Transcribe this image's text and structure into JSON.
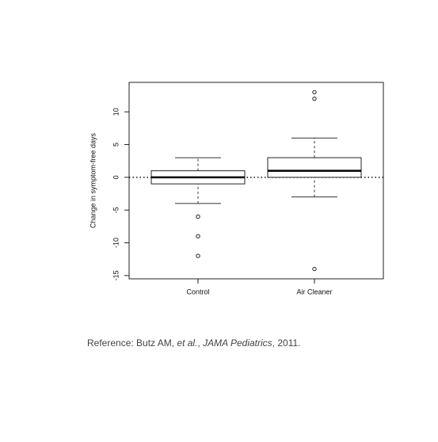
{
  "chart_data": {
    "type": "box",
    "y_label": "Change in symptom-free days",
    "categories": [
      "Control",
      "Air Cleaner"
    ],
    "boxes": [
      {
        "whisker_low": -4,
        "q1": -1,
        "median": 0,
        "q3": 1,
        "whisker_high": 3,
        "outliers": [
          -6,
          -9,
          -12
        ]
      },
      {
        "whisker_low": -3,
        "q1": 0,
        "median": 1,
        "q3": 3,
        "whisker_high": 6,
        "outliers": [
          12,
          13,
          -14
        ]
      }
    ],
    "reference_line": 0,
    "ylim": [
      -15.5,
      14.5
    ],
    "yticks": [
      -15,
      -10,
      -5,
      0,
      5,
      10
    ]
  },
  "reference": [
    "Reference: Butz AM, ",
    "et al.",
    ", ",
    "JAMA Pediatrics",
    ", 2011."
  ]
}
